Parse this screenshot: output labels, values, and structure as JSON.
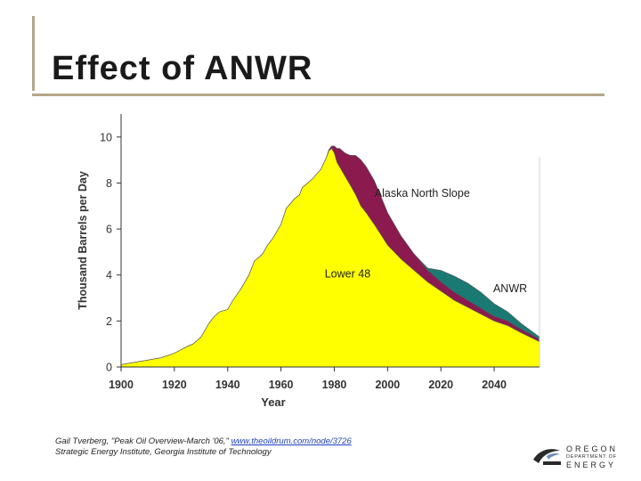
{
  "slide": {
    "title": "Effect of ANWR",
    "citation_line1_prefix": "Gail Tverberg, \"Peak Oil Overview-March '06,\" ",
    "citation_link": "www.theoildrum.com/node/3726",
    "citation_line2": "Strategic Energy Institute, Georgia Institute of Technology",
    "logo": {
      "line1": "OREGON",
      "line2": "DEPARTMENT OF",
      "line3": "ENERGY"
    }
  },
  "colors": {
    "lower48": "#ffff00",
    "alaska": "#8b1a4f",
    "anwr": "#1a7a73",
    "accent_rule": "#b5a78a"
  },
  "chart_data": {
    "type": "area",
    "stacked": true,
    "title": "",
    "xlabel": "Year",
    "ylabel": "Thousand Barrels per Day",
    "xlim": [
      1900,
      2057
    ],
    "ylim": [
      0,
      11
    ],
    "xticks": [
      1900,
      1920,
      1940,
      1960,
      1980,
      2000,
      2020,
      2040
    ],
    "yticks": [
      0,
      2,
      4,
      6,
      8,
      10
    ],
    "x": [
      1900,
      1905,
      1910,
      1915,
      1920,
      1925,
      1927,
      1930,
      1933,
      1935,
      1937,
      1940,
      1942,
      1945,
      1948,
      1950,
      1953,
      1955,
      1957,
      1960,
      1962,
      1965,
      1967,
      1968,
      1970,
      1972,
      1975,
      1977,
      1978,
      1979,
      1980,
      1981,
      1982,
      1984,
      1986,
      1988,
      1990,
      1992,
      1995,
      2000,
      2005,
      2010,
      2015,
      2020,
      2025,
      2030,
      2035,
      2040,
      2045,
      2050,
      2057
    ],
    "series": [
      {
        "name": "Lower 48",
        "values": [
          0.1,
          0.2,
          0.3,
          0.4,
          0.6,
          0.9,
          1.0,
          1.3,
          1.9,
          2.2,
          2.4,
          2.5,
          2.9,
          3.4,
          4.0,
          4.6,
          4.9,
          5.3,
          5.6,
          6.2,
          6.9,
          7.3,
          7.5,
          7.8,
          8.0,
          8.2,
          8.6,
          9.1,
          9.4,
          9.5,
          9.3,
          8.9,
          8.7,
          8.3,
          7.9,
          7.5,
          7.0,
          6.7,
          6.2,
          5.3,
          4.7,
          4.2,
          3.7,
          3.3,
          2.9,
          2.6,
          2.3,
          2.0,
          1.8,
          1.5,
          1.1
        ]
      },
      {
        "name": "Alaska North Slope",
        "values": [
          0,
          0,
          0,
          0,
          0,
          0,
          0,
          0,
          0,
          0,
          0,
          0,
          0,
          0,
          0,
          0,
          0,
          0,
          0,
          0,
          0,
          0,
          0,
          0,
          0,
          0,
          0,
          0,
          0.05,
          0.1,
          0.3,
          0.6,
          0.8,
          1.0,
          1.3,
          1.7,
          2.0,
          2.0,
          1.9,
          1.4,
          1.0,
          0.7,
          0.5,
          0.4,
          0.35,
          0.3,
          0.25,
          0.2,
          0.2,
          0.15,
          0.1
        ]
      },
      {
        "name": "ANWR",
        "values": [
          0,
          0,
          0,
          0,
          0,
          0,
          0,
          0,
          0,
          0,
          0,
          0,
          0,
          0,
          0,
          0,
          0,
          0,
          0,
          0,
          0,
          0,
          0,
          0,
          0,
          0,
          0,
          0,
          0,
          0,
          0,
          0,
          0,
          0,
          0,
          0,
          0,
          0,
          0,
          0,
          0,
          0,
          0.1,
          0.5,
          0.7,
          0.75,
          0.7,
          0.55,
          0.4,
          0.25,
          0.1
        ]
      }
    ],
    "annotations": [
      {
        "text": "Alaska North Slope",
        "x": 2013,
        "y": 7.4
      },
      {
        "text": "Lower 48",
        "x": 1985,
        "y": 3.9
      },
      {
        "text": "ANWR",
        "x": 2046,
        "y": 3.25
      }
    ],
    "grid": false,
    "legend": "none"
  }
}
